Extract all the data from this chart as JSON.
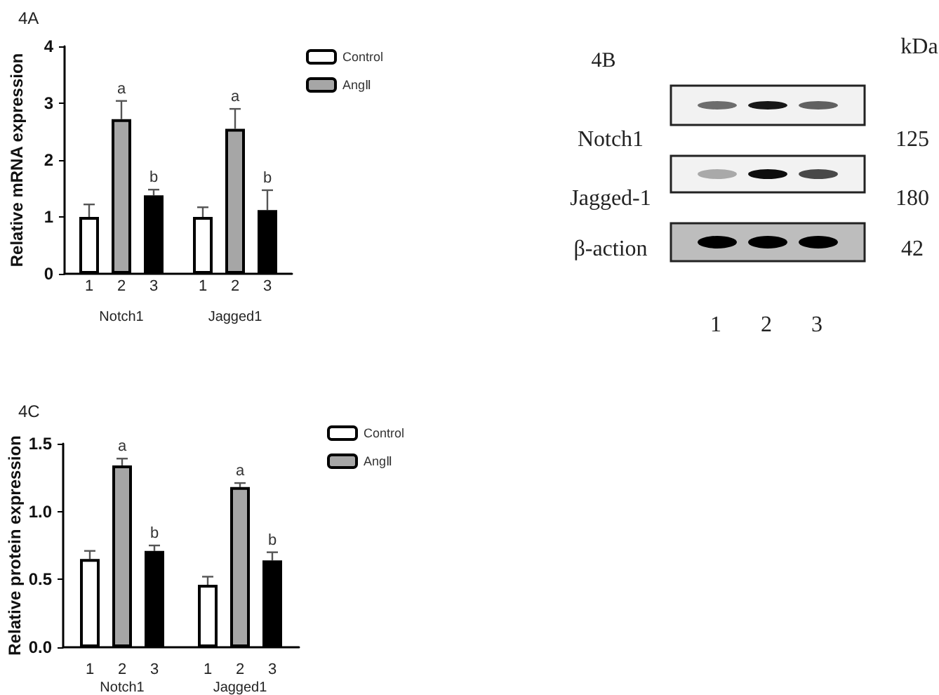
{
  "chart_data": [
    {
      "type": "bar",
      "title": "4A",
      "ylabel": "Relative mRNA expression",
      "categories": [
        "Notch1",
        "Jagged1"
      ],
      "series": [
        {
          "name": "Control",
          "color": "#ffffff",
          "values": [
            1.0,
            1.0
          ],
          "errors": [
            0.22,
            0.17
          ]
        },
        {
          "name": "AngⅡ",
          "color": "#a6a6a6",
          "values": [
            2.72,
            2.55
          ],
          "errors": [
            0.32,
            0.35
          ],
          "value_labels": [
            "a",
            "a"
          ]
        },
        {
          "color": "#000000",
          "values": [
            1.38,
            1.12
          ],
          "errors": [
            0.1,
            0.35
          ],
          "value_labels": [
            "b",
            "b"
          ]
        }
      ],
      "annotations": [
        "1",
        "2",
        "3",
        "1",
        "2",
        "3"
      ],
      "ylim": [
        0,
        4
      ],
      "yticks": [
        0,
        1,
        2,
        3,
        4
      ],
      "grid": false,
      "legend": "top right"
    },
    {
      "type": "other",
      "title": "4B",
      "annotations": [
        "kDa",
        "Notch1",
        "Jagged-1",
        "β-action",
        "125",
        "180",
        "42",
        "1",
        "2",
        "3"
      ]
    },
    {
      "type": "bar",
      "title": "4C",
      "ylabel": "Relative protein expression",
      "categories": [
        "Notch1",
        "Jagged1"
      ],
      "series": [
        {
          "name": "Control",
          "color": "#ffffff",
          "values": [
            0.65,
            0.46
          ],
          "errors": [
            0.06,
            0.06
          ]
        },
        {
          "name": "AngⅡ",
          "color": "#a6a6a6",
          "values": [
            1.34,
            1.18
          ],
          "errors": [
            0.05,
            0.03
          ],
          "value_labels": [
            "a",
            "a"
          ]
        },
        {
          "color": "#000000",
          "values": [
            0.71,
            0.64
          ],
          "errors": [
            0.04,
            0.06
          ],
          "value_labels": [
            "b",
            "b"
          ]
        }
      ],
      "annotations": [
        "1",
        "2",
        "3",
        "1",
        "2",
        "3"
      ],
      "ylim": [
        0,
        1.5
      ],
      "yticks": [
        {
          "value": 0,
          "label": "0.0"
        },
        {
          "value": 0.5,
          "label": "0.5"
        },
        {
          "value": 1.0,
          "label": "1.0"
        },
        1.5
      ],
      "grid": false,
      "legend": "top right"
    }
  ]
}
